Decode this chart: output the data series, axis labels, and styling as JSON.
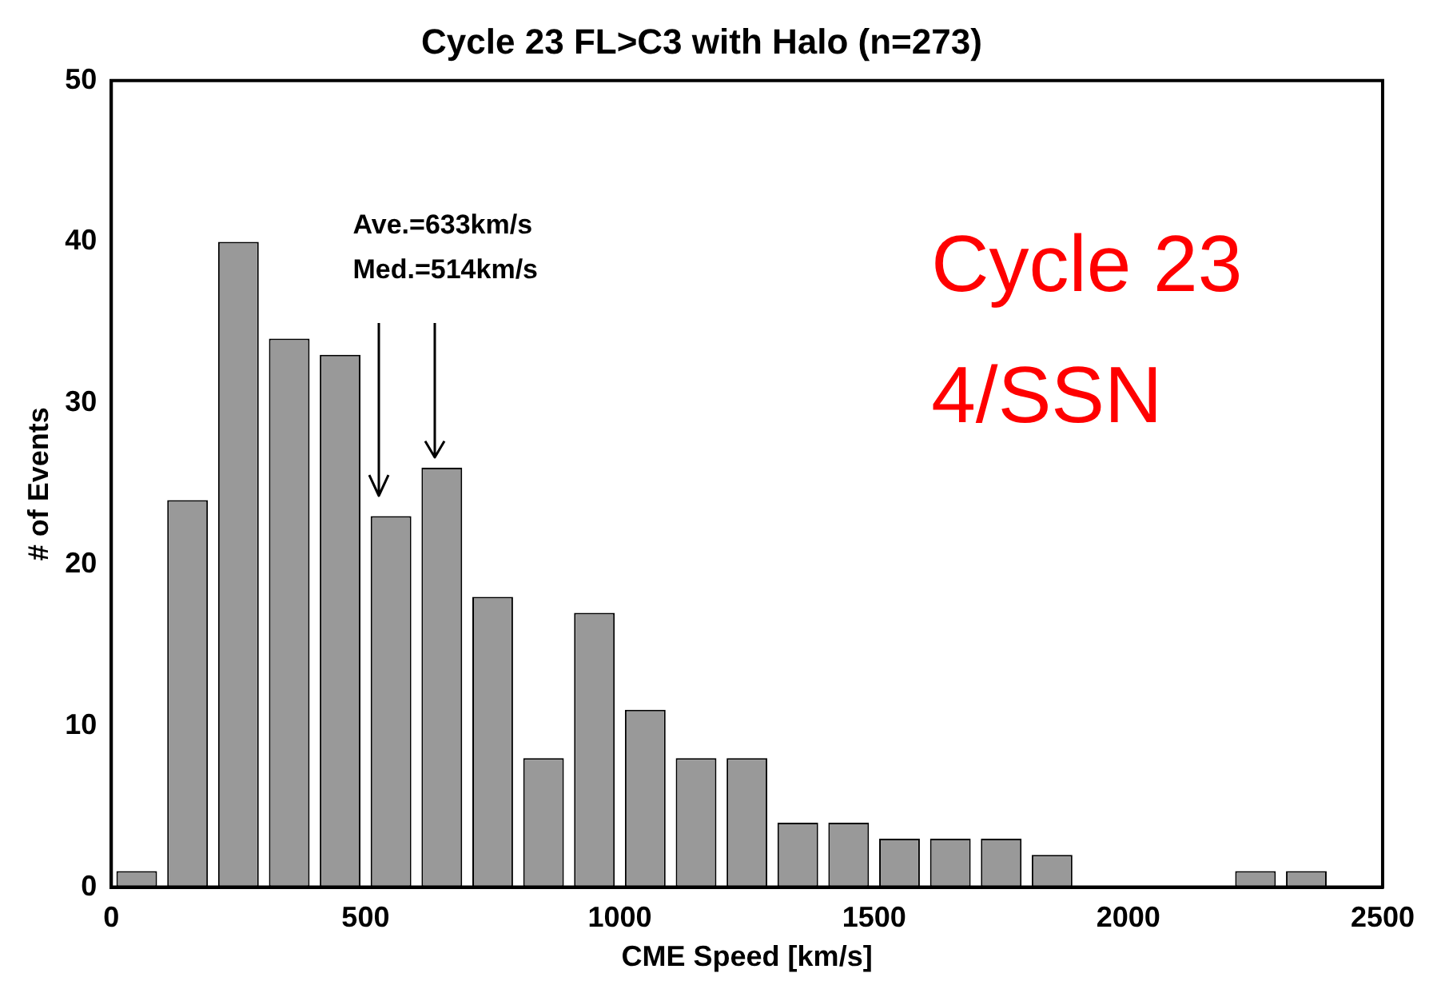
{
  "chart_data": {
    "type": "histogram",
    "title": "Cycle 23 FL>C3 with Halo (n=273)",
    "xlabel": "CME Speed [km/s]",
    "ylabel": "# of Events",
    "bins": [
      0,
      100,
      200,
      300,
      400,
      500,
      600,
      700,
      800,
      900,
      1000,
      1100,
      1200,
      1300,
      1400,
      1500,
      1600,
      1700,
      1800,
      1900,
      2000,
      2100,
      2200,
      2300,
      2400
    ],
    "values": [
      1,
      24,
      40,
      34,
      33,
      23,
      26,
      18,
      8,
      17,
      11,
      8,
      8,
      4,
      4,
      3,
      3,
      3,
      2,
      0,
      0,
      0,
      1,
      1
    ],
    "color": "#999999",
    "xlim": [
      0,
      2500
    ],
    "xticks": [
      0,
      500,
      1000,
      1500,
      2000,
      2500
    ],
    "ylim": [
      0,
      50
    ],
    "yticks": [
      0,
      10,
      20,
      30,
      40,
      50
    ],
    "grid": false,
    "legend": false,
    "annotations": [
      "Ave.=633km/s",
      "Med.=514km/s",
      "Cycle 23",
      "4/SSN"
    ]
  }
}
